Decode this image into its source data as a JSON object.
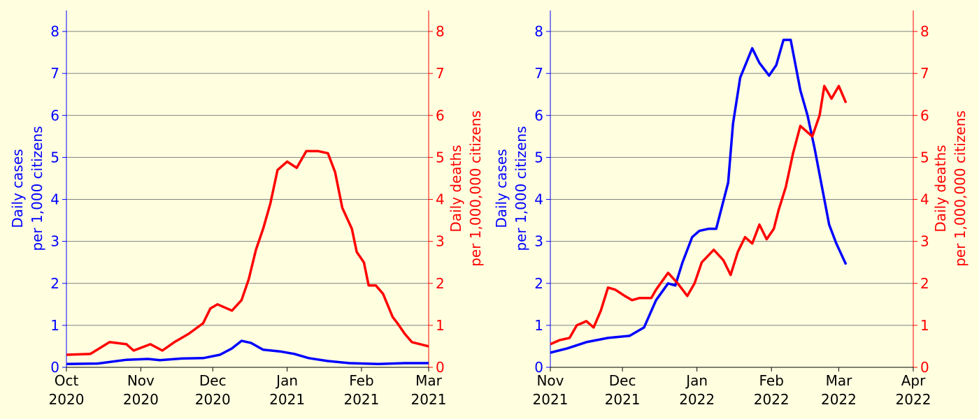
{
  "chart_data": [
    {
      "type": "line",
      "ylabel": "Daily cases\nper 1,000 citizens",
      "y2label": "Daily deaths\nper 1,000,000 citizens",
      "xlim": [
        0,
        151
      ],
      "xticks": [
        {
          "value": 0,
          "label": "Oct\n2020"
        },
        {
          "value": 31,
          "label": "Nov\n2020"
        },
        {
          "value": 61,
          "label": "Dec\n2020"
        },
        {
          "value": 92,
          "label": "Jan\n2021"
        },
        {
          "value": 123,
          "label": "Feb\n2021"
        },
        {
          "value": 151,
          "label": "Mar\n2021"
        }
      ],
      "ylim": [
        0,
        8.5
      ],
      "yticks": [
        0,
        1,
        2,
        3,
        4,
        5,
        6,
        7,
        8
      ],
      "y2lim": [
        0,
        8.5
      ],
      "y2ticks": [
        0,
        1,
        2,
        3,
        4,
        5,
        6,
        7,
        8
      ],
      "grid": true,
      "series": [
        {
          "color": "#0000ff",
          "x": [
            0,
            13,
            25,
            34,
            39,
            48,
            57,
            64,
            69,
            73,
            77,
            82,
            89,
            95,
            101,
            109,
            118,
            130,
            141,
            151
          ],
          "values": [
            0.08,
            0.09,
            0.18,
            0.2,
            0.17,
            0.21,
            0.22,
            0.3,
            0.45,
            0.63,
            0.58,
            0.42,
            0.38,
            0.32,
            0.22,
            0.15,
            0.1,
            0.08,
            0.1,
            0.1
          ]
        },
        {
          "color": "#ff0000",
          "axis": "y2",
          "x": [
            0,
            10,
            18,
            25,
            28,
            35,
            40,
            45,
            51,
            57,
            60,
            63,
            69,
            73,
            76,
            79,
            82,
            85,
            88,
            92,
            96,
            100,
            105,
            109,
            112,
            115,
            119,
            121,
            124,
            126,
            129,
            132,
            136,
            138,
            141,
            144,
            151
          ],
          "values": [
            0.3,
            0.32,
            0.6,
            0.55,
            0.4,
            0.55,
            0.4,
            0.6,
            0.8,
            1.05,
            1.4,
            1.5,
            1.35,
            1.6,
            2.1,
            2.8,
            3.3,
            3.9,
            4.7,
            4.9,
            4.75,
            5.15,
            5.15,
            5.1,
            4.65,
            3.8,
            3.3,
            2.75,
            2.5,
            1.95,
            1.95,
            1.75,
            1.2,
            1.05,
            0.8,
            0.6,
            0.5
          ]
        }
      ]
    },
    {
      "type": "line",
      "ylabel": "Daily cases\nper 1,000 citizens",
      "y2label": "Daily deaths\nper 1,000,000 citizens",
      "xlim": [
        0,
        151
      ],
      "xticks": [
        {
          "value": 0,
          "label": "Nov\n2021"
        },
        {
          "value": 30,
          "label": "Dec\n2021"
        },
        {
          "value": 61,
          "label": "Jan\n2022"
        },
        {
          "value": 92,
          "label": "Feb\n2022"
        },
        {
          "value": 120,
          "label": "Mar\n2022"
        },
        {
          "value": 151,
          "label": "Apr\n2022"
        }
      ],
      "ylim": [
        0,
        8.5
      ],
      "yticks": [
        0,
        1,
        2,
        3,
        4,
        5,
        6,
        7,
        8
      ],
      "y2lim": [
        0,
        8.5
      ],
      "y2ticks": [
        0,
        1,
        2,
        3,
        4,
        5,
        6,
        7,
        8
      ],
      "grid": true,
      "series": [
        {
          "color": "#0000ff",
          "x": [
            0,
            7,
            15,
            24,
            33,
            39,
            44,
            49,
            52,
            55,
            59,
            62,
            66,
            69,
            74,
            76,
            79,
            84,
            87,
            91,
            94,
            97,
            100,
            104,
            107,
            110,
            113,
            116,
            119,
            123
          ],
          "values": [
            0.35,
            0.45,
            0.6,
            0.7,
            0.75,
            0.95,
            1.6,
            2.0,
            1.95,
            2.5,
            3.1,
            3.25,
            3.3,
            3.3,
            4.4,
            5.8,
            6.9,
            7.6,
            7.25,
            6.95,
            7.2,
            7.8,
            7.8,
            6.6,
            6.0,
            5.2,
            4.3,
            3.4,
            2.95,
            2.45
          ]
        },
        {
          "color": "#ff0000",
          "axis": "y2",
          "x": [
            0,
            4,
            8,
            11,
            15,
            18,
            21,
            24,
            27,
            31,
            34,
            37,
            42,
            44,
            49,
            53,
            57,
            60,
            63,
            68,
            72,
            75,
            78,
            81,
            84,
            87,
            90,
            93,
            95,
            98,
            101,
            104,
            109,
            112,
            114,
            117,
            120,
            123
          ],
          "values": [
            0.55,
            0.65,
            0.7,
            1.0,
            1.1,
            0.95,
            1.35,
            1.9,
            1.85,
            1.7,
            1.6,
            1.65,
            1.65,
            1.85,
            2.25,
            2.0,
            1.7,
            2.0,
            2.5,
            2.8,
            2.55,
            2.2,
            2.75,
            3.1,
            2.95,
            3.4,
            3.05,
            3.3,
            3.75,
            4.3,
            5.1,
            5.75,
            5.5,
            6.0,
            6.7,
            6.4,
            6.7,
            6.3
          ]
        }
      ]
    }
  ]
}
